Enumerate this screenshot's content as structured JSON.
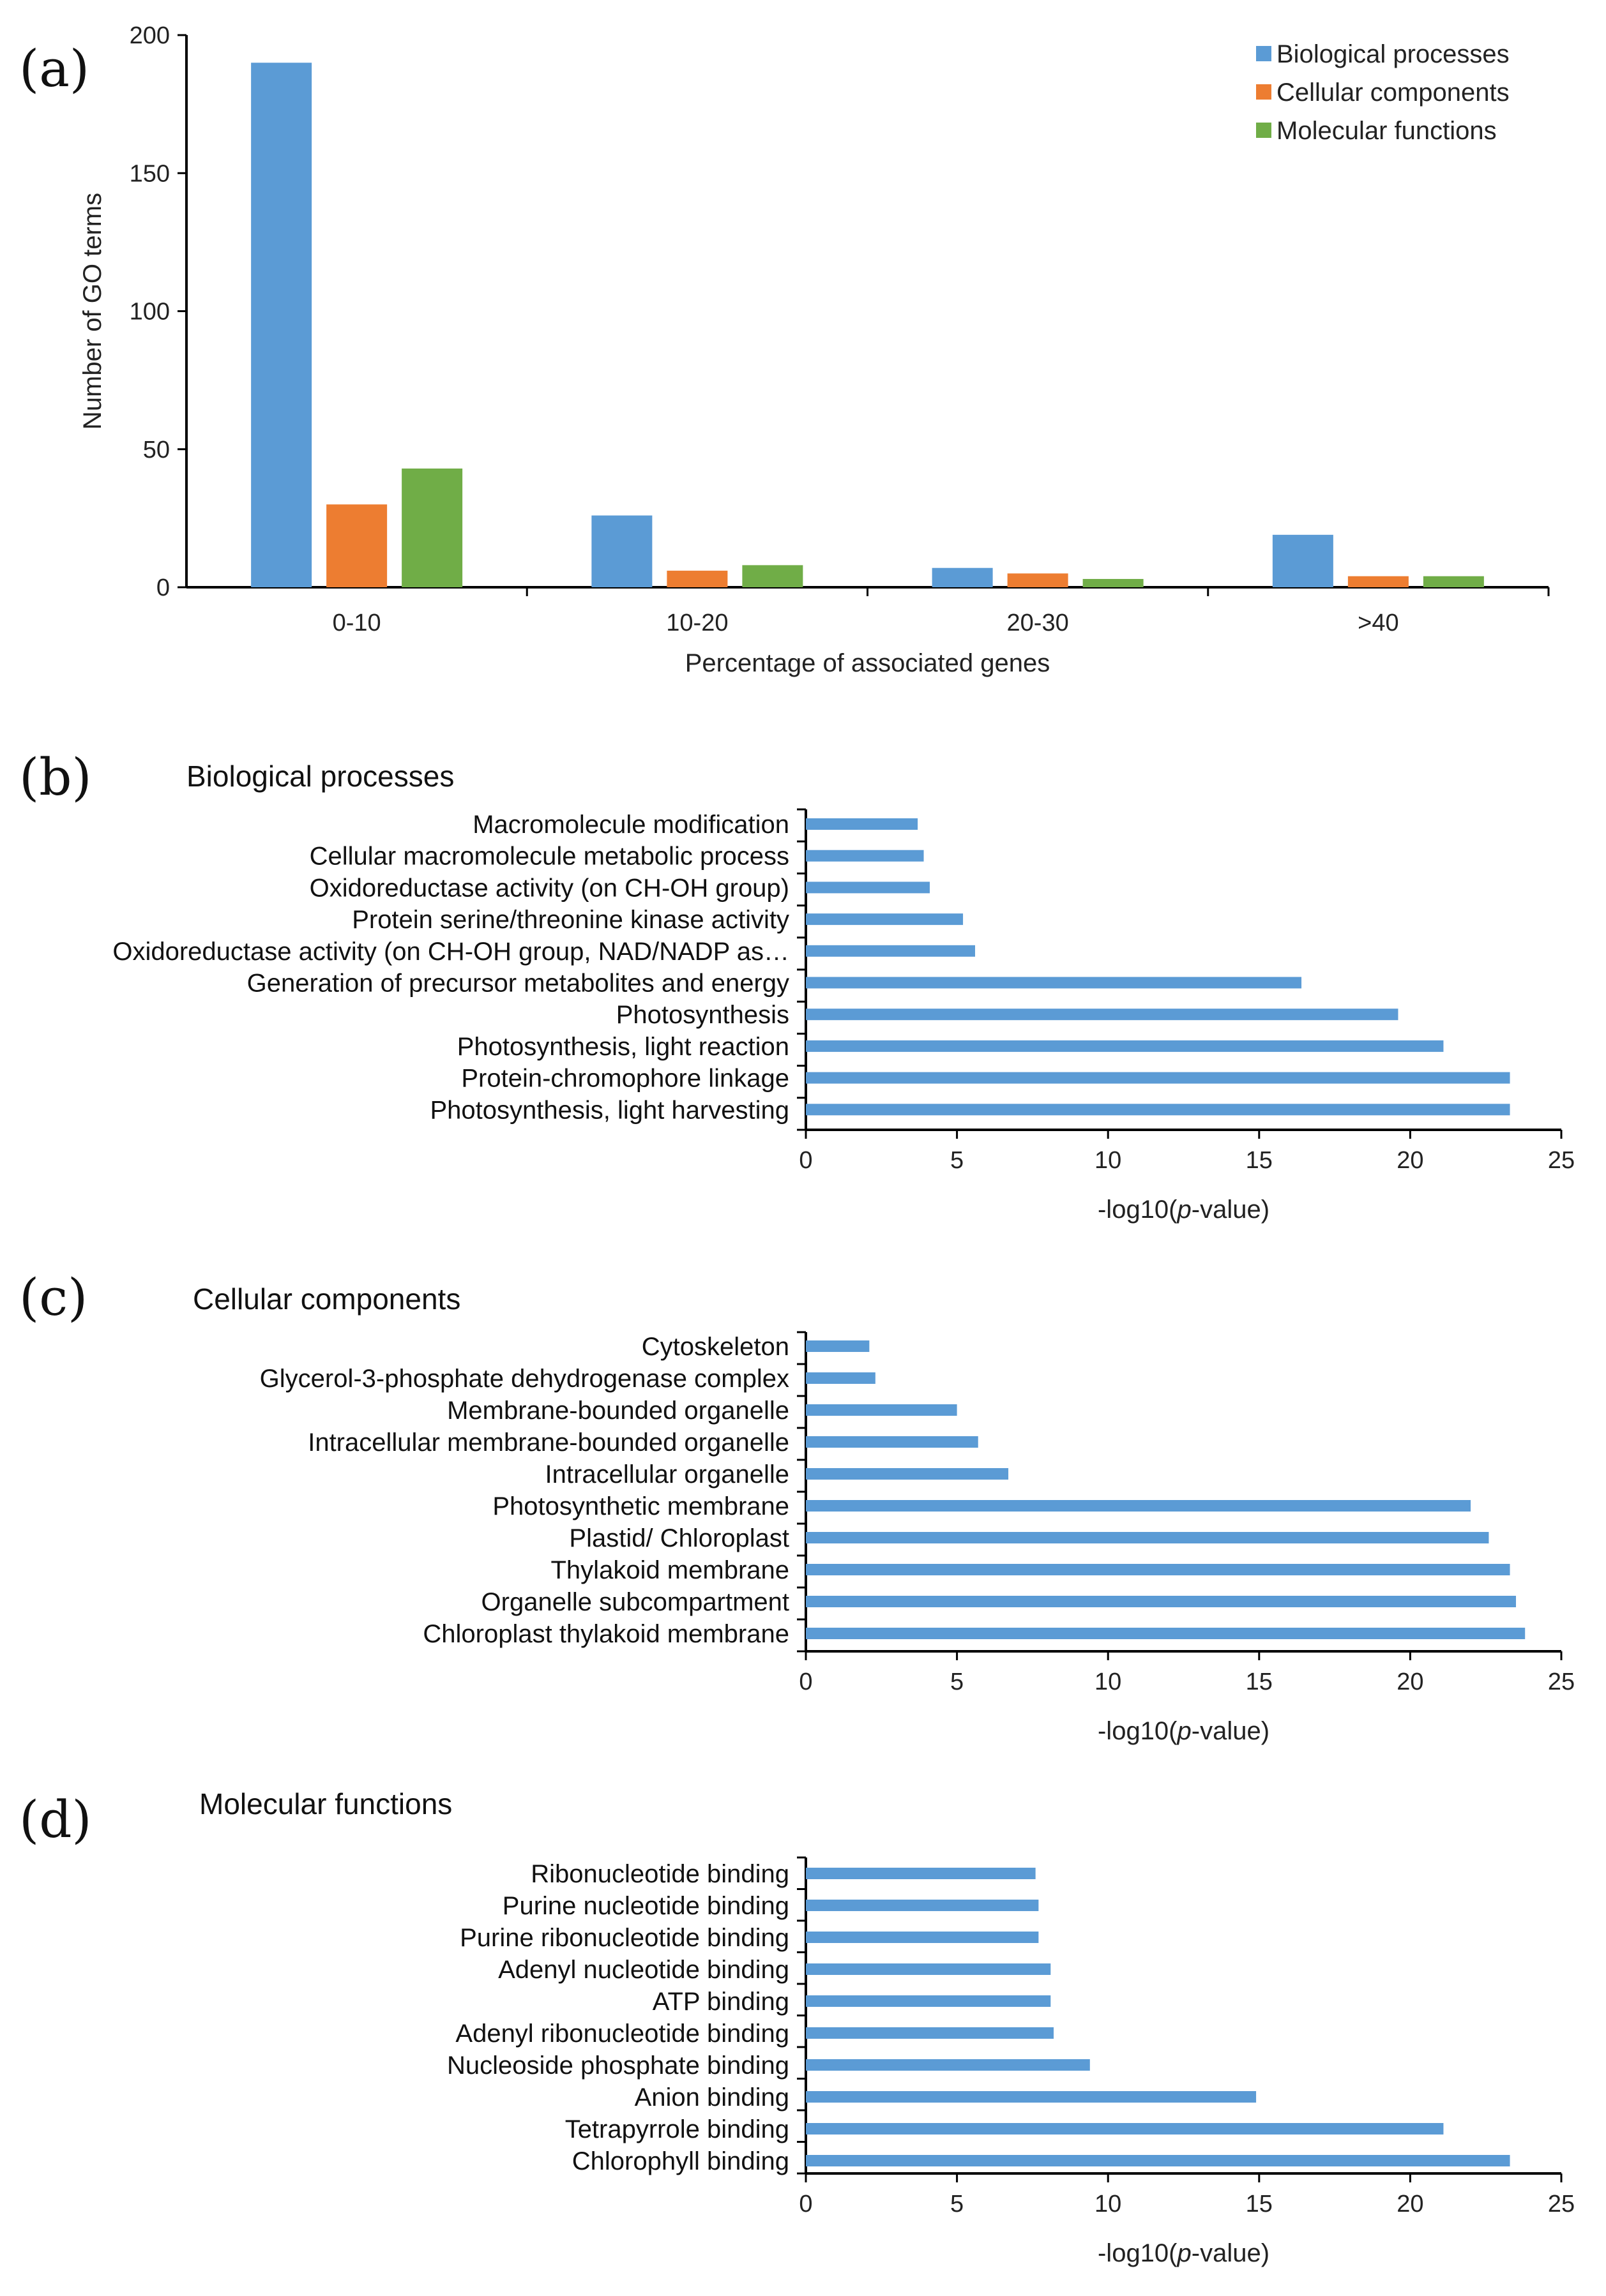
{
  "chart_data": [
    {
      "panel": "(a)",
      "type": "bar",
      "title": "",
      "xlabel": "Percentage of associated genes",
      "ylabel": "Number of GO terms",
      "ylim": [
        0,
        200
      ],
      "yticks": [
        "0",
        "50",
        "100",
        "150",
        "200"
      ],
      "categories": [
        "0-10",
        "10-20",
        "20-30",
        ">40"
      ],
      "series": [
        {
          "name": "Biological processes",
          "color": "#5b9bd5",
          "values": [
            190,
            26,
            7,
            19
          ]
        },
        {
          "name": "Cellular components",
          "color": "#ed7d31",
          "values": [
            30,
            6,
            5,
            4
          ]
        },
        {
          "name": "Molecular functions",
          "color": "#70ad47",
          "values": [
            43,
            8,
            3,
            4
          ]
        }
      ],
      "legend": "top-right",
      "grid": false
    },
    {
      "panel": "(b)",
      "type": "bar",
      "orientation": "horizontal",
      "title": "Biological processes",
      "xlabel_pre": "-log10(",
      "xlabel_italic": "p",
      "xlabel_post": "-value)",
      "xlim": [
        0,
        25
      ],
      "xticks": [
        "0",
        "5",
        "10",
        "15",
        "20",
        "25"
      ],
      "color": "#5b9bd5",
      "categories": [
        "Macromolecule modification",
        "Cellular macromolecule metabolic process",
        "Oxidoreductase activity (on CH-OH group)",
        "Protein serine/threonine kinase activity",
        "Oxidoreductase activity (on CH-OH group, NAD/NADP as…",
        "Generation of precursor metabolites and energy",
        "Photosynthesis",
        "Photosynthesis, light reaction",
        "Protein-chromophore linkage",
        "Photosynthesis, light harvesting"
      ],
      "values": [
        3.7,
        3.9,
        4.1,
        5.2,
        5.6,
        16.4,
        19.6,
        21.1,
        23.3,
        23.3
      ],
      "grid": false
    },
    {
      "panel": "(c)",
      "type": "bar",
      "orientation": "horizontal",
      "title": "Cellular components",
      "xlabel_pre": "-log10(",
      "xlabel_italic": "p",
      "xlabel_post": "-value)",
      "xlim": [
        0,
        25
      ],
      "xticks": [
        "0",
        "5",
        "10",
        "15",
        "20",
        "25"
      ],
      "color": "#5b9bd5",
      "categories": [
        "Cytoskeleton",
        "Glycerol-3-phosphate dehydrogenase complex",
        "Membrane-bounded organelle",
        "Intracellular membrane-bounded organelle",
        "Intracellular organelle",
        "Photosynthetic membrane",
        "Plastid/ Chloroplast",
        "Thylakoid membrane",
        "Organelle subcompartment",
        "Chloroplast thylakoid membrane"
      ],
      "values": [
        2.1,
        2.3,
        5.0,
        5.7,
        6.7,
        22.0,
        22.6,
        23.3,
        23.5,
        23.8
      ],
      "grid": false
    },
    {
      "panel": "(d)",
      "type": "bar",
      "orientation": "horizontal",
      "title": "Molecular functions",
      "xlabel_pre": "-log10(",
      "xlabel_italic": "p",
      "xlabel_post": "-value)",
      "xlim": [
        0,
        25
      ],
      "xticks": [
        "0",
        "5",
        "10",
        "15",
        "20",
        "25"
      ],
      "color": "#5b9bd5",
      "categories": [
        "Ribonucleotide binding",
        "Purine nucleotide binding",
        "Purine ribonucleotide binding",
        "Adenyl nucleotide binding",
        "ATP binding",
        "Adenyl ribonucleotide binding",
        "Nucleoside phosphate binding",
        "Anion binding",
        "Tetrapyrrole binding",
        "Chlorophyll binding"
      ],
      "values": [
        7.6,
        7.7,
        7.7,
        8.1,
        8.1,
        8.2,
        9.4,
        14.9,
        21.1,
        23.3
      ],
      "grid": false
    }
  ]
}
